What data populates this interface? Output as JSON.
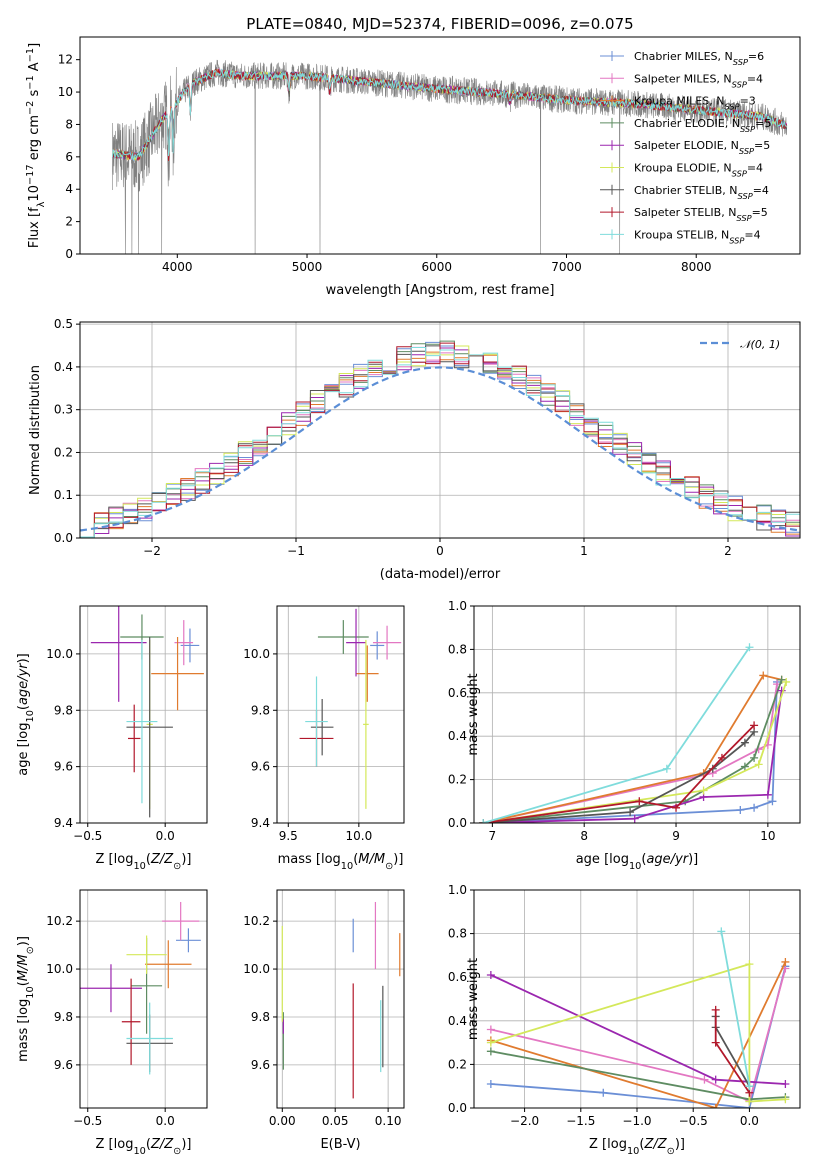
{
  "title": "PLATE=0840, MJD=52374, FIBERID=0096, z=0.075",
  "colors": {
    "Chabrier MILES": "#6b8fd6",
    "Salpeter MILES": "#e377c2",
    "Kroupa MILES": "#e07b2f",
    "Chabrier ELODIE": "#5e8c62",
    "Salpeter ELODIE": "#9b27af",
    "Kroupa ELODIE": "#d4e85a",
    "Chabrier STELIB": "#555555",
    "Salpeter STELIB": "#b2182b",
    "Kroupa STELIB": "#7fdcdc",
    "data": "#808080",
    "gauss": "#5b8ed6"
  },
  "chart_data": [
    {
      "id": "spectrum",
      "type": "line",
      "xlabel": "wavelength [Angstrom, rest frame]",
      "ylabel_parts": [
        "Flux [f",
        "λ",
        "10",
        "−17",
        " erg cm",
        "−2",
        " s",
        "−1",
        " A",
        "−1",
        "]"
      ],
      "xlim": [
        3250,
        8800
      ],
      "ylim": [
        0,
        13.4
      ],
      "xticks": [
        4000,
        5000,
        6000,
        7000,
        8000
      ],
      "yticks": [
        0,
        2,
        4,
        6,
        8,
        10,
        12
      ],
      "legend": [
        {
          "base": "Chabrier MILES, N",
          "sub": "SSP",
          "tail": "=6"
        },
        {
          "base": "Salpeter MILES, N",
          "sub": "SSP",
          "tail": "=4"
        },
        {
          "base": "Kroupa MILES, N",
          "sub": "SSP",
          "tail": "=3"
        },
        {
          "base": "Chabrier ELODIE, N",
          "sub": "SSP",
          "tail": "=5"
        },
        {
          "base": "Salpeter ELODIE, N",
          "sub": "SSP",
          "tail": "=5"
        },
        {
          "base": "Kroupa ELODIE, N",
          "sub": "SSP",
          "tail": "=4"
        },
        {
          "base": "Chabrier STELIB, N",
          "sub": "SSP",
          "tail": "=4"
        },
        {
          "base": "Salpeter STELIB, N",
          "sub": "SSP",
          "tail": "=5"
        },
        {
          "base": "Kroupa STELIB, N",
          "sub": "SSP",
          "tail": "=4"
        }
      ],
      "continuum_knots": [
        [
          3500,
          6.2
        ],
        [
          3700,
          6.0
        ],
        [
          3900,
          8.5
        ],
        [
          4000,
          9.4
        ],
        [
          4100,
          10.5
        ],
        [
          4300,
          11.2
        ],
        [
          4500,
          11.0
        ],
        [
          5000,
          11.0
        ],
        [
          5500,
          10.6
        ],
        [
          6000,
          10.2
        ],
        [
          6500,
          9.9
        ],
        [
          7000,
          9.5
        ],
        [
          7500,
          9.3
        ],
        [
          8000,
          8.9
        ],
        [
          8500,
          8.5
        ],
        [
          8700,
          7.9
        ]
      ],
      "absorption_lines": [
        [
          3934,
          3.5
        ],
        [
          3969,
          3.0
        ],
        [
          4102,
          1.8
        ],
        [
          4861,
          1.0
        ],
        [
          5175,
          0.8
        ],
        [
          6563,
          0.5
        ]
      ],
      "spikes": [
        [
          3600,
          0
        ],
        [
          3650,
          0
        ],
        [
          3700,
          0
        ],
        [
          3880,
          0
        ],
        [
          4600,
          0
        ],
        [
          5100,
          0
        ],
        [
          6800,
          0
        ],
        [
          7410,
          0
        ]
      ]
    },
    {
      "id": "residuals",
      "type": "line",
      "xlabel": "(data-model)/error",
      "ylabel": "Normed distribution",
      "xlim": [
        -2.5,
        2.5
      ],
      "ylim": [
        0,
        0.505
      ],
      "xticks": [
        -2,
        -1,
        0,
        1,
        2
      ],
      "xtick_labels": [
        "−2",
        "−1",
        "0",
        "1",
        "2"
      ],
      "yticks": [
        0,
        0.1,
        0.2,
        0.3,
        0.4,
        0.5
      ],
      "ytick_labels": [
        "0.0",
        "0.1",
        "0.2",
        "0.3",
        "0.4",
        "0.5"
      ],
      "legend": "𝒩(0, 1)",
      "bin_width": 0.1
    },
    {
      "id": "age_vs_Z",
      "type": "scatter",
      "xlabel": "Z [log10(Z/Z⊙)]",
      "ylabel": "age [log10(age/yr)]",
      "xlim": [
        -0.55,
        0.27
      ],
      "ylim": [
        9.4,
        10.17
      ],
      "xticks": [
        -0.5,
        0.0
      ],
      "xtick_labels": [
        "−0.5",
        "0.0"
      ],
      "yticks": [
        9.4,
        9.6,
        9.8,
        10.0
      ],
      "ytick_labels": [
        "9.4",
        "9.6",
        "9.8",
        "10.0"
      ],
      "points": [
        {
          "model": "Chabrier MILES",
          "x": 0.16,
          "y": 10.03,
          "xerr": 0.06,
          "yerr": 0.06
        },
        {
          "model": "Salpeter MILES",
          "x": 0.12,
          "y": 10.04,
          "xerr": 0.06,
          "yerr": 0.08
        },
        {
          "model": "Kroupa MILES",
          "x": 0.08,
          "y": 9.93,
          "xerr": 0.17,
          "yerr": 0.13
        },
        {
          "model": "Chabrier ELODIE",
          "x": -0.15,
          "y": 10.06,
          "xerr": 0.14,
          "yerr": 0.08
        },
        {
          "model": "Salpeter ELODIE",
          "x": -0.3,
          "y": 10.04,
          "xerr": 0.18,
          "yerr": 0.21
        },
        {
          "model": "Kroupa ELODIE",
          "x": -0.1,
          "y": 9.75,
          "xerr": 0.02,
          "yerr": 0.3
        },
        {
          "model": "Chabrier STELIB",
          "x": -0.1,
          "y": 9.74,
          "xerr": 0.15,
          "yerr": 0.32
        },
        {
          "model": "Salpeter STELIB",
          "x": -0.2,
          "y": 9.7,
          "xerr": 0.04,
          "yerr": 0.12
        },
        {
          "model": "Kroupa STELIB",
          "x": -0.15,
          "y": 9.76,
          "xerr": 0.1,
          "yerr": 0.29
        }
      ]
    },
    {
      "id": "age_vs_mass",
      "type": "scatter",
      "xlabel": "mass [log10(M/M⊙)]",
      "xlim": [
        9.42,
        10.32
      ],
      "ylim": [
        9.4,
        10.17
      ],
      "xticks": [
        9.5,
        10.0
      ],
      "xtick_labels": [
        "9.5",
        "10.0"
      ],
      "yticks": [
        9.4,
        9.6,
        9.8,
        10.0
      ],
      "ytick_labels": [
        "9.4",
        "9.6",
        "9.8",
        "10.0"
      ],
      "points": [
        {
          "model": "Chabrier MILES",
          "x": 10.13,
          "y": 10.03,
          "xerr": 0.05,
          "yerr": 0.05
        },
        {
          "model": "Salpeter MILES",
          "x": 10.2,
          "y": 10.04,
          "xerr": 0.1,
          "yerr": 0.06
        },
        {
          "model": "Kroupa MILES",
          "x": 10.06,
          "y": 9.93,
          "xerr": 0.08,
          "yerr": 0.1
        },
        {
          "model": "Chabrier ELODIE",
          "x": 9.89,
          "y": 10.06,
          "xerr": 0.18,
          "yerr": 0.06
        },
        {
          "model": "Salpeter ELODIE",
          "x": 9.98,
          "y": 10.04,
          "xerr": 0.07,
          "yerr": 0.12
        },
        {
          "model": "Kroupa ELODIE",
          "x": 10.05,
          "y": 9.75,
          "xerr": 0.02,
          "yerr": 0.3
        },
        {
          "model": "Chabrier STELIB",
          "x": 9.74,
          "y": 9.74,
          "xerr": 0.08,
          "yerr": 0.1
        },
        {
          "model": "Salpeter STELIB",
          "x": 9.7,
          "y": 9.7,
          "xerr": 0.12,
          "yerr": 0.1
        },
        {
          "model": "Kroupa STELIB",
          "x": 9.7,
          "y": 9.76,
          "xerr": 0.08,
          "yerr": 0.16
        }
      ]
    },
    {
      "id": "weights_vs_age",
      "type": "line",
      "xlabel": "age [log10(age/yr)]",
      "ylabel": "mass weight",
      "xlim": [
        6.8,
        10.35
      ],
      "ylim": [
        0,
        1.0
      ],
      "xticks": [
        7,
        8,
        9,
        10
      ],
      "yticks": [
        0,
        0.2,
        0.4,
        0.6,
        0.8,
        1.0
      ],
      "ytick_labels": [
        "0.0",
        "0.2",
        "0.4",
        "0.6",
        "0.8",
        "1.0"
      ],
      "series": [
        {
          "model": "Chabrier MILES",
          "x": [
            6.9,
            9.7,
            9.85,
            10.05,
            10.1
          ],
          "y": [
            0.0,
            0.06,
            0.07,
            0.1,
            0.65
          ]
        },
        {
          "model": "Salpeter MILES",
          "x": [
            6.9,
            9.4,
            9.9,
            10.0,
            10.1
          ],
          "y": [
            0.0,
            0.23,
            0.34,
            0.36,
            0.64
          ]
        },
        {
          "model": "Kroupa MILES",
          "x": [
            6.9,
            9.3,
            9.95,
            10.15
          ],
          "y": [
            0.0,
            0.23,
            0.68,
            0.66
          ]
        },
        {
          "model": "Chabrier ELODIE",
          "x": [
            6.9,
            9.1,
            9.75,
            9.85,
            10.15
          ],
          "y": [
            0.0,
            0.1,
            0.26,
            0.3,
            0.66
          ]
        },
        {
          "model": "Salpeter ELODIE",
          "x": [
            6.9,
            8.55,
            9.3,
            10.0,
            10.15
          ],
          "y": [
            0.0,
            0.02,
            0.12,
            0.13,
            0.61
          ]
        },
        {
          "model": "Kroupa ELODIE",
          "x": [
            6.9,
            9.3,
            9.9,
            10.2
          ],
          "y": [
            0.0,
            0.15,
            0.27,
            0.65
          ]
        },
        {
          "model": "Chabrier STELIB",
          "x": [
            6.9,
            8.5,
            9.4,
            9.75,
            9.85
          ],
          "y": [
            0.0,
            0.05,
            0.25,
            0.37,
            0.42
          ]
        },
        {
          "model": "Salpeter STELIB",
          "x": [
            6.9,
            8.6,
            9.0,
            9.5,
            9.85
          ],
          "y": [
            0.0,
            0.1,
            0.07,
            0.3,
            0.45
          ]
        },
        {
          "model": "Kroupa STELIB",
          "x": [
            6.9,
            8.9,
            9.8
          ],
          "y": [
            0.0,
            0.25,
            0.81
          ]
        }
      ]
    },
    {
      "id": "mass_vs_Z",
      "type": "scatter",
      "xlabel": "Z [log10(Z/Z⊙)]",
      "ylabel": "mass [log10(M/M⊙)]",
      "xlim": [
        -0.55,
        0.27
      ],
      "ylim": [
        9.42,
        10.33
      ],
      "xticks": [
        -0.5,
        0.0
      ],
      "xtick_labels": [
        "−0.5",
        "0.0"
      ],
      "yticks": [
        9.6,
        9.8,
        10.0,
        10.2
      ],
      "ytick_labels": [
        "9.6",
        "9.8",
        "10.0",
        "10.2"
      ],
      "points": [
        {
          "model": "Chabrier MILES",
          "x": 0.15,
          "y": 10.12,
          "xerr": 0.08,
          "yerr": 0.05
        },
        {
          "model": "Salpeter MILES",
          "x": 0.1,
          "y": 10.2,
          "xerr": 0.12,
          "yerr": 0.08
        },
        {
          "model": "Kroupa MILES",
          "x": 0.02,
          "y": 10.02,
          "xerr": 0.15,
          "yerr": 0.1
        },
        {
          "model": "Chabrier ELODIE",
          "x": -0.12,
          "y": 9.93,
          "xerr": 0.1,
          "yerr": 0.2
        },
        {
          "model": "Salpeter ELODIE",
          "x": -0.35,
          "y": 9.92,
          "xerr": 0.2,
          "yerr": 0.1
        },
        {
          "model": "Kroupa ELODIE",
          "x": -0.12,
          "y": 10.06,
          "xerr": 0.13,
          "yerr": 0.08
        },
        {
          "model": "Chabrier STELIB",
          "x": -0.1,
          "y": 9.69,
          "xerr": 0.15,
          "yerr": 0.12
        },
        {
          "model": "Salpeter STELIB",
          "x": -0.22,
          "y": 9.78,
          "xerr": 0.06,
          "yerr": 0.18
        },
        {
          "model": "Kroupa STELIB",
          "x": -0.1,
          "y": 9.71,
          "xerr": 0.15,
          "yerr": 0.15
        }
      ]
    },
    {
      "id": "mass_vs_EBV",
      "type": "scatter",
      "xlabel": "E(B-V)",
      "xlim": [
        -0.005,
        0.115
      ],
      "ylim": [
        9.42,
        10.33
      ],
      "xticks": [
        0.0,
        0.05,
        0.1
      ],
      "xtick_labels": [
        "0.00",
        "0.05",
        "0.10"
      ],
      "yticks": [
        9.6,
        9.8,
        10.0,
        10.2
      ],
      "ytick_labels": [
        "9.6",
        "9.8",
        "10.0",
        "10.2"
      ],
      "points": [
        {
          "model": "Chabrier MILES",
          "x": 0.067,
          "y": 10.14,
          "yerr": 0.07
        },
        {
          "model": "Salpeter MILES",
          "x": 0.088,
          "y": 10.14,
          "yerr": 0.14
        },
        {
          "model": "Kroupa MILES",
          "x": 0.111,
          "y": 10.06,
          "yerr": 0.09
        },
        {
          "model": "Chabrier ELODIE",
          "x": 0.001,
          "y": 9.7,
          "yerr": 0.12
        },
        {
          "model": "Salpeter ELODIE",
          "x": 0.001,
          "y": 9.76,
          "yerr": 0.03
        },
        {
          "model": "Kroupa ELODIE",
          "x": 0.0,
          "y": 9.98,
          "yerr": 0.2
        },
        {
          "model": "Chabrier STELIB",
          "x": 0.095,
          "y": 9.76,
          "yerr": 0.17
        },
        {
          "model": "Salpeter STELIB",
          "x": 0.067,
          "y": 9.7,
          "yerr": 0.24
        },
        {
          "model": "Kroupa STELIB",
          "x": 0.093,
          "y": 9.72,
          "yerr": 0.15
        }
      ]
    },
    {
      "id": "weights_vs_Z",
      "type": "line",
      "xlabel": "Z [log10(Z/Z⊙)]",
      "ylabel": "mass weight",
      "xlim": [
        -2.45,
        0.45
      ],
      "ylim": [
        0,
        1.0
      ],
      "xticks": [
        -2.0,
        -1.5,
        -1.0,
        -0.5,
        0.0
      ],
      "xtick_labels": [
        "−2.0",
        "−1.5",
        "−1.0",
        "−0.5",
        "0.0"
      ],
      "yticks": [
        0,
        0.2,
        0.4,
        0.6,
        0.8,
        1.0
      ],
      "ytick_labels": [
        "0.0",
        "0.2",
        "0.4",
        "0.6",
        "0.8",
        "1.0"
      ],
      "series": [
        {
          "model": "Chabrier MILES",
          "x": [
            -2.3,
            -1.3,
            0.0,
            0.32
          ],
          "y": [
            0.11,
            0.07,
            0.0,
            0.65
          ]
        },
        {
          "model": "Salpeter MILES",
          "x": [
            -2.3,
            -0.4,
            0.0,
            0.32
          ],
          "y": [
            0.36,
            0.13,
            0.03,
            0.64
          ]
        },
        {
          "model": "Kroupa MILES",
          "x": [
            -2.3,
            -0.3,
            0.32
          ],
          "y": [
            0.31,
            0.0,
            0.67
          ]
        },
        {
          "model": "Chabrier ELODIE",
          "x": [
            -2.3,
            0.0,
            0.32
          ],
          "y": [
            0.26,
            0.04,
            0.05
          ]
        },
        {
          "model": "Salpeter ELODIE",
          "x": [
            -2.3,
            -0.3,
            0.0,
            0.32
          ],
          "y": [
            0.61,
            0.13,
            0.12,
            0.11
          ]
        },
        {
          "model": "Kroupa ELODIE",
          "x": [
            -2.3,
            0.0,
            0.0,
            0.32
          ],
          "y": [
            0.3,
            0.66,
            0.03,
            0.04
          ]
        },
        {
          "model": "Chabrier STELIB",
          "x": [
            -0.3,
            -0.3,
            0.0
          ],
          "y": [
            0.42,
            0.37,
            0.1
          ]
        },
        {
          "model": "Salpeter STELIB",
          "x": [
            -0.3,
            -0.3,
            0.0
          ],
          "y": [
            0.45,
            0.3,
            0.07
          ]
        },
        {
          "model": "Kroupa STELIB",
          "x": [
            -0.25,
            0.0
          ],
          "y": [
            0.81,
            0.1
          ]
        }
      ]
    }
  ]
}
